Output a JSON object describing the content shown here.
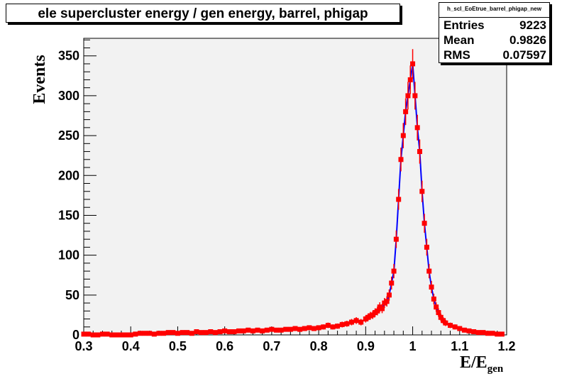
{
  "chart_data": {
    "type": "histogram",
    "title": "ele supercluster energy / gen energy, barrel, phigap",
    "xlabel": "E/E",
    "xlabel_sub": "gen",
    "ylabel": "Events",
    "xlim": [
      0.3,
      1.2
    ],
    "ylim": [
      0,
      372
    ],
    "xticks": [
      "0.3",
      "0.4",
      "0.5",
      "0.6",
      "0.7",
      "0.8",
      "0.9",
      "1",
      "1.1",
      "1.2"
    ],
    "yticks": [
      "0",
      "50",
      "100",
      "150",
      "200",
      "250",
      "300",
      "350"
    ],
    "grid": false,
    "series": [
      {
        "color": "#ff0000",
        "line_color": "#0000ff",
        "x": [
          0.3,
          0.31,
          0.32,
          0.33,
          0.34,
          0.35,
          0.36,
          0.37,
          0.38,
          0.39,
          0.4,
          0.41,
          0.42,
          0.43,
          0.44,
          0.45,
          0.46,
          0.47,
          0.48,
          0.49,
          0.5,
          0.51,
          0.52,
          0.53,
          0.54,
          0.55,
          0.56,
          0.57,
          0.58,
          0.59,
          0.6,
          0.61,
          0.62,
          0.63,
          0.64,
          0.65,
          0.66,
          0.67,
          0.68,
          0.69,
          0.7,
          0.71,
          0.72,
          0.73,
          0.74,
          0.75,
          0.76,
          0.77,
          0.78,
          0.79,
          0.8,
          0.81,
          0.82,
          0.83,
          0.84,
          0.85,
          0.86,
          0.87,
          0.88,
          0.89,
          0.9,
          0.905,
          0.91,
          0.915,
          0.92,
          0.925,
          0.93,
          0.935,
          0.94,
          0.945,
          0.95,
          0.955,
          0.96,
          0.965,
          0.97,
          0.975,
          0.98,
          0.985,
          0.99,
          0.995,
          1.0,
          1.005,
          1.01,
          1.015,
          1.02,
          1.025,
          1.03,
          1.035,
          1.04,
          1.045,
          1.05,
          1.055,
          1.06,
          1.065,
          1.07,
          1.08,
          1.09,
          1.1,
          1.11,
          1.12,
          1.13,
          1.14,
          1.15,
          1.16,
          1.17,
          1.18,
          1.19
        ],
        "values": [
          1,
          1,
          0,
          0,
          1,
          1,
          0,
          0,
          0,
          0,
          0,
          1,
          2,
          2,
          2,
          1,
          2,
          2,
          3,
          3,
          2,
          3,
          3,
          2,
          4,
          3,
          3,
          4,
          3,
          4,
          5,
          4,
          4,
          5,
          5,
          6,
          5,
          6,
          5,
          6,
          7,
          6,
          6,
          7,
          7,
          8,
          7,
          8,
          9,
          8,
          9,
          10,
          12,
          10,
          11,
          13,
          14,
          16,
          18,
          16,
          20,
          22,
          24,
          25,
          28,
          30,
          35,
          33,
          40,
          42,
          50,
          65,
          80,
          120,
          170,
          220,
          250,
          280,
          300,
          320,
          340,
          300,
          260,
          230,
          180,
          140,
          110,
          80,
          60,
          45,
          35,
          28,
          22,
          18,
          15,
          12,
          10,
          8,
          6,
          5,
          4,
          3,
          3,
          2,
          2,
          1,
          1
        ]
      }
    ]
  },
  "stats_box": {
    "name": "h_scl_EoEtrue_barrel_phigap_new",
    "entries_label": "Entries",
    "entries_value": "9223",
    "mean_label": "Mean",
    "mean_value": "0.9826",
    "rms_label": "RMS",
    "rms_value": "0.07597"
  }
}
